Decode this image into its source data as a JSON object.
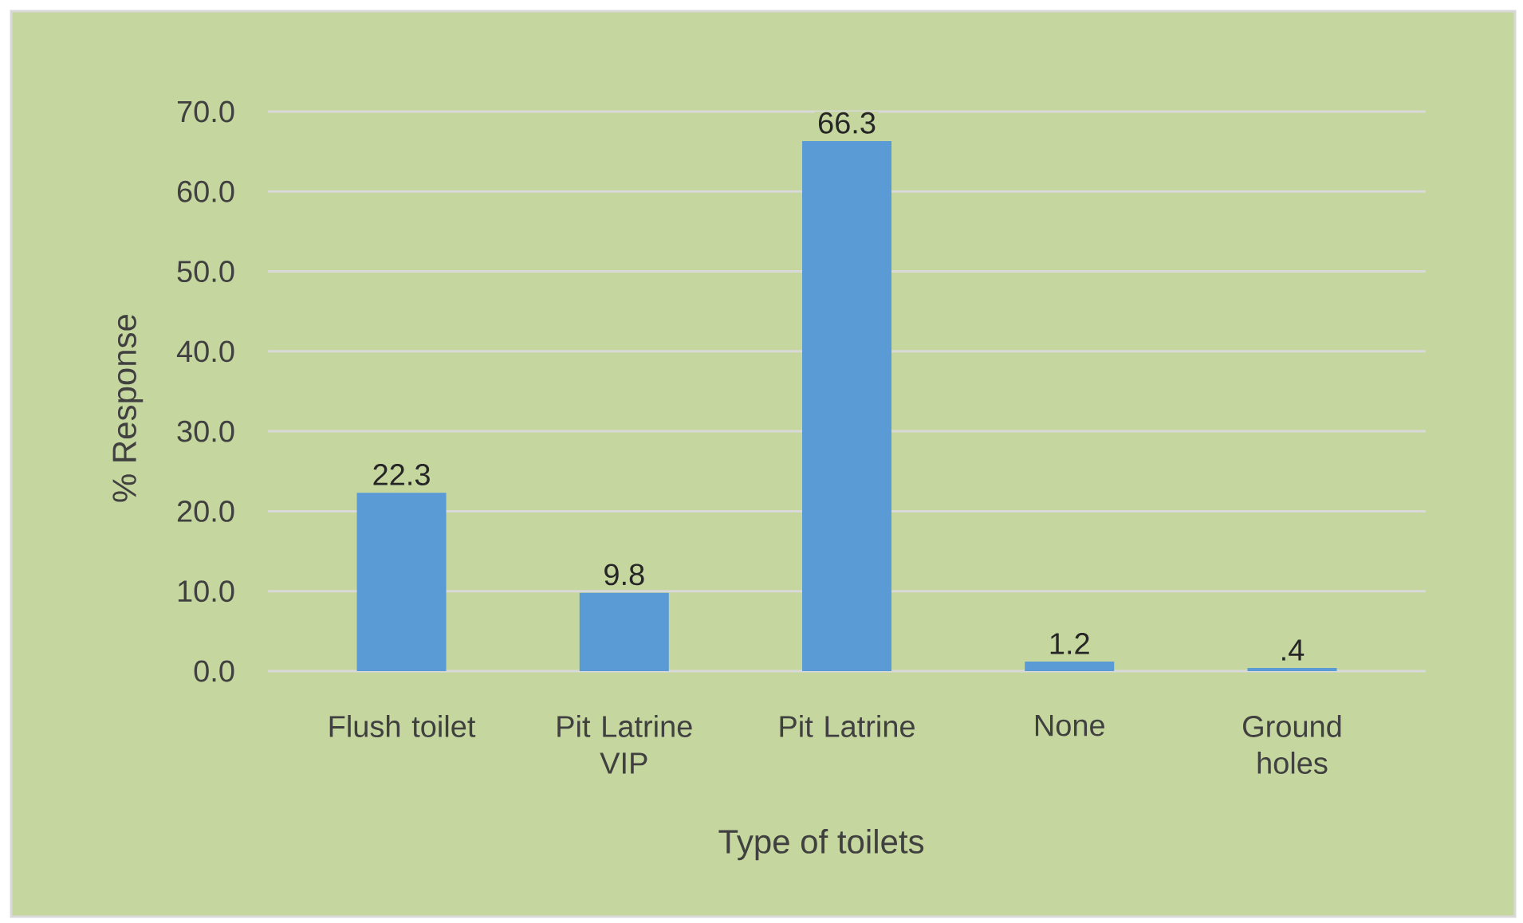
{
  "chart_data": {
    "type": "bar",
    "categories": [
      "Flush toilet",
      "Pit Latrine VIP",
      "Pit Latrine",
      "None",
      "Ground holes"
    ],
    "values": [
      22.3,
      9.8,
      66.3,
      1.2,
      0.4
    ],
    "value_labels": [
      "22.3",
      "9.8",
      "66.3",
      "1.2",
      ".4"
    ],
    "color": "#5b9bd5",
    "xlabel": "Type of toilets",
    "ylabel": "% Response",
    "ylim": [
      0,
      70
    ],
    "yticks": [
      {
        "value": 0,
        "label": "0.0"
      },
      {
        "value": 10,
        "label": "10.0"
      },
      {
        "value": 20,
        "label": "20.0"
      },
      {
        "value": 30,
        "label": "30.0"
      },
      {
        "value": 40,
        "label": "40.0"
      },
      {
        "value": 50,
        "label": "50.0"
      },
      {
        "value": 60,
        "label": "60.0"
      },
      {
        "value": 70,
        "label": "70.0"
      }
    ],
    "grid": "y"
  }
}
